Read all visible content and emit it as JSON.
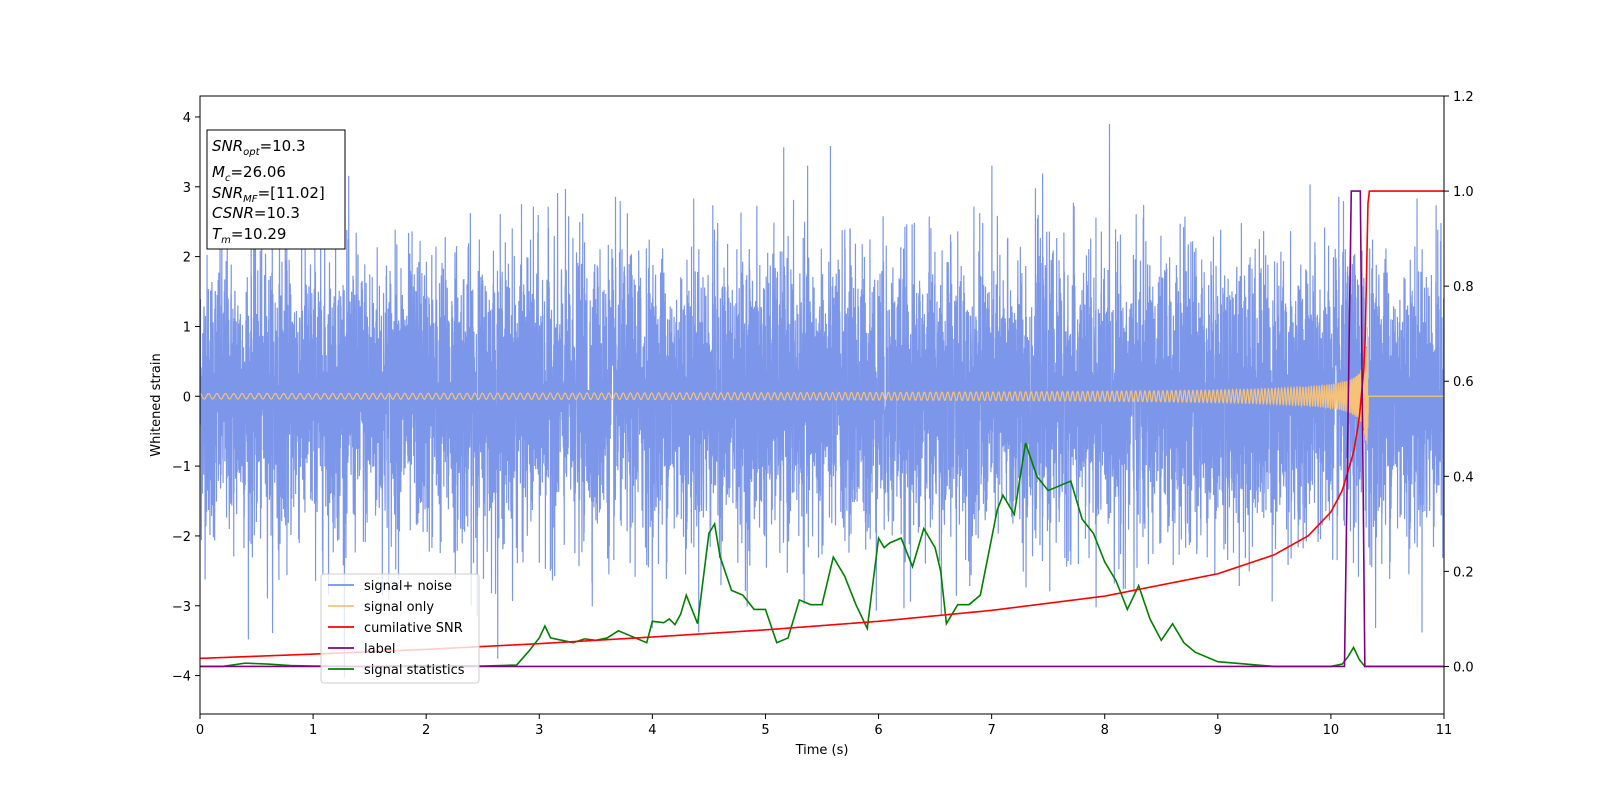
{
  "chart_data": {
    "type": "line",
    "xlabel": "Time (s)",
    "ylabel": "Whitened strain",
    "xlim": [
      0,
      11
    ],
    "ylim": [
      -4.55,
      4.3
    ],
    "y2lim": [
      -0.1,
      1.2
    ],
    "x_ticks": [
      "0",
      "1",
      "2",
      "3",
      "4",
      "5",
      "6",
      "7",
      "8",
      "9",
      "10",
      "11"
    ],
    "y_ticks": [
      "4",
      "3",
      "2",
      "1",
      "0",
      "−1",
      "−2",
      "−3",
      "−4"
    ],
    "y2_ticks": [
      "1.2",
      "1.0",
      "0.8",
      "0.6",
      "0.4",
      "0.2",
      "0.0"
    ],
    "grid": false,
    "legend_position": "lower-left",
    "info_box": {
      "position": "top-left",
      "snr_opt": {
        "base": "SNR",
        "sub": "opt",
        "value": "=10.3"
      },
      "mc": {
        "base": "M",
        "sub": "c",
        "value": "=26.06"
      },
      "snr_mf": {
        "base": "SNR",
        "sub": "MF",
        "value": "=[11.02]"
      },
      "csnr": {
        "base": "CSNR",
        "value": "=10.3"
      },
      "tm": {
        "base": "T",
        "sub": "m",
        "value": "=10.29"
      }
    },
    "series": [
      {
        "name": "signal+ noise",
        "color": "#7590e8",
        "axis": "left",
        "description_values": {
          "noise_amplitude": 1.0,
          "peak_max": 3.9,
          "peak_min": -4.15
        }
      },
      {
        "name": "signal only",
        "color": "#f5c27a",
        "axis": "left",
        "chirp": {
          "amplitude_start": 0.02,
          "amplitude_peak": 1.0,
          "merger_time": 10.29,
          "end_time": 10.33
        }
      },
      {
        "name": "cumilative SNR",
        "color": "#ff0000",
        "axis": "right",
        "x": [
          0,
          1,
          2,
          3,
          4,
          5,
          6,
          7,
          8,
          9,
          9.5,
          9.8,
          10.0,
          10.1,
          10.2,
          10.25,
          10.3,
          10.33,
          11
        ],
        "y": [
          0.017,
          0.026,
          0.036,
          0.048,
          0.062,
          0.077,
          0.095,
          0.118,
          0.148,
          0.195,
          0.235,
          0.275,
          0.325,
          0.37,
          0.45,
          0.52,
          0.65,
          1.0,
          1.0
        ]
      },
      {
        "name": "label",
        "color": "#800080",
        "axis": "right",
        "x": [
          0,
          10.12,
          10.18,
          10.26,
          10.3,
          11
        ],
        "y": [
          0.0,
          0.0,
          1.0,
          1.0,
          0.0,
          0.0
        ]
      },
      {
        "name": "signal statistics",
        "color": "#008000",
        "axis": "right",
        "x": [
          0,
          0.2,
          0.4,
          0.6,
          0.8,
          1.0,
          1.5,
          2.0,
          2.5,
          2.8,
          2.9,
          3.0,
          3.05,
          3.1,
          3.3,
          3.4,
          3.5,
          3.6,
          3.7,
          3.8,
          3.95,
          4.0,
          4.1,
          4.15,
          4.2,
          4.25,
          4.3,
          4.4,
          4.5,
          4.55,
          4.6,
          4.7,
          4.8,
          4.9,
          5.0,
          5.1,
          5.2,
          5.3,
          5.4,
          5.5,
          5.6,
          5.7,
          5.8,
          5.9,
          6.0,
          6.05,
          6.1,
          6.2,
          6.3,
          6.4,
          6.5,
          6.55,
          6.6,
          6.7,
          6.8,
          6.9,
          7.0,
          7.05,
          7.1,
          7.2,
          7.3,
          7.4,
          7.5,
          7.6,
          7.7,
          7.8,
          7.9,
          8.0,
          8.1,
          8.2,
          8.3,
          8.4,
          8.5,
          8.6,
          8.7,
          8.8,
          9.0,
          9.5,
          10.0,
          10.1,
          10.15,
          10.2,
          10.25,
          10.3,
          10.35,
          11
        ],
        "y": [
          0.0,
          0.0,
          0.007,
          0.005,
          0.002,
          0.001,
          0.0,
          0.002,
          0.001,
          0.003,
          0.03,
          0.06,
          0.085,
          0.06,
          0.05,
          0.058,
          0.055,
          0.06,
          0.075,
          0.065,
          0.05,
          0.095,
          0.092,
          0.1,
          0.088,
          0.11,
          0.15,
          0.09,
          0.28,
          0.3,
          0.23,
          0.16,
          0.15,
          0.12,
          0.12,
          0.05,
          0.06,
          0.14,
          0.13,
          0.13,
          0.23,
          0.19,
          0.13,
          0.08,
          0.27,
          0.25,
          0.26,
          0.27,
          0.21,
          0.29,
          0.25,
          0.2,
          0.09,
          0.13,
          0.13,
          0.15,
          0.27,
          0.33,
          0.36,
          0.32,
          0.47,
          0.4,
          0.37,
          0.38,
          0.39,
          0.31,
          0.28,
          0.22,
          0.18,
          0.12,
          0.17,
          0.1,
          0.055,
          0.09,
          0.05,
          0.03,
          0.01,
          0.0,
          0.0,
          0.005,
          0.02,
          0.04,
          0.015,
          0.0,
          0.0,
          0.0
        ]
      }
    ]
  }
}
